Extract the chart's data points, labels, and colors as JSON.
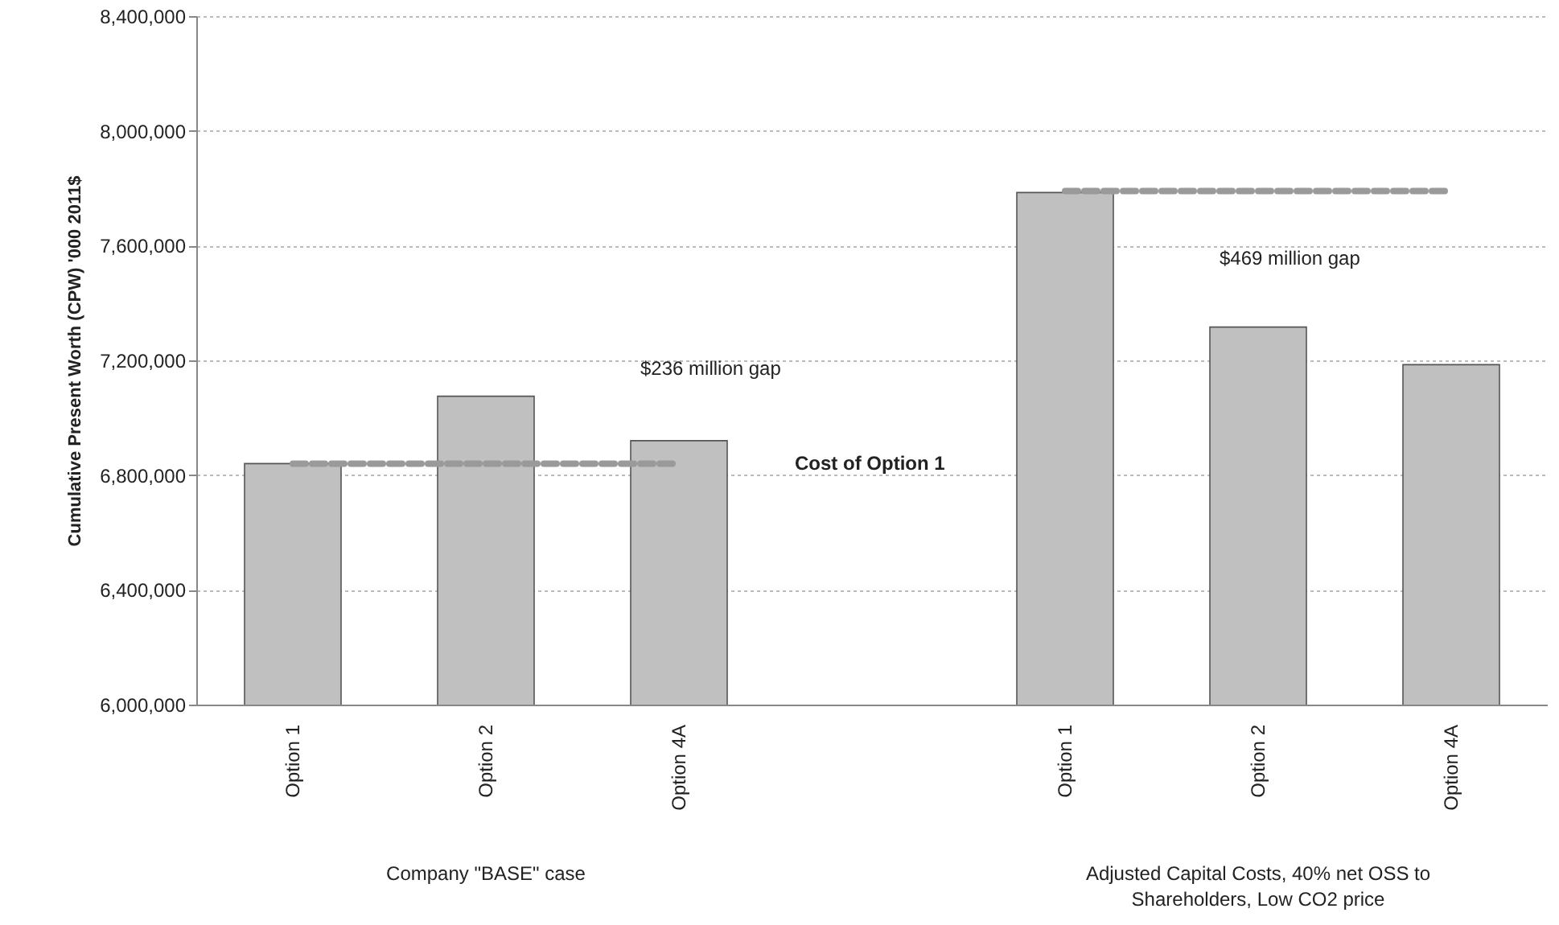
{
  "chart_data": {
    "type": "bar",
    "categories": [
      "Option 1",
      "Option 2",
      "Option 4A",
      null,
      "Option 1",
      "Option 2",
      "Option 4A"
    ],
    "ylabel": "Cumulative Present Worth (CPW) '000 2011$",
    "series": [
      {
        "color": "#c0c0c0",
        "values": [
          6840000,
          7075000,
          6920000,
          null,
          7785000,
          7316000,
          7185000
        ]
      },
      {
        "type": "line",
        "name": "Cost of Option 1",
        "color": "#9a9a9a",
        "line_style": "dashed",
        "values": [
          6840000,
          6840000,
          6840000,
          null,
          null,
          null,
          null
        ]
      },
      {
        "type": "line",
        "color": "#9a9a9a",
        "line_style": "dashed",
        "values": [
          null,
          null,
          null,
          null,
          7790000,
          7790000,
          7790000
        ]
      }
    ],
    "ylim": [
      6000000,
      8400000
    ],
    "yticks": [
      {
        "value": 6000000,
        "label": "6,000,000"
      },
      {
        "value": 6400000,
        "label": "6,400,000"
      },
      {
        "value": 6800000,
        "label": "6,800,000"
      },
      {
        "value": 7200000,
        "label": "7,200,000"
      },
      {
        "value": 7600000,
        "label": "7,600,000"
      },
      {
        "value": 8000000,
        "label": "8,000,000"
      },
      {
        "value": 8400000,
        "label": "8,400,000"
      }
    ],
    "grid": "y",
    "annotations": [
      "$236 million gap",
      "$469 million gap",
      "Company \"BASE\" case",
      "Adjusted Capital Costs, 40% net OSS to Shareholders, Low CO2 price"
    ]
  }
}
